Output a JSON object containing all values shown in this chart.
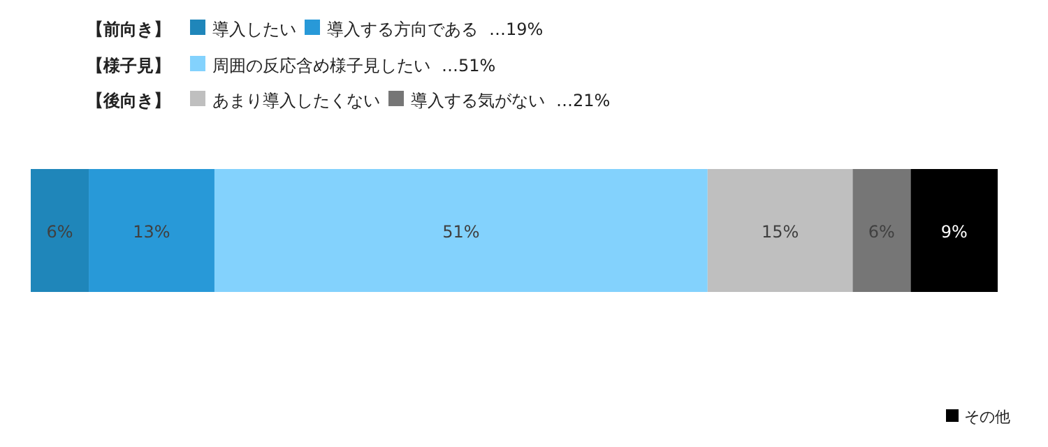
{
  "chart_data": {
    "type": "bar",
    "orientation": "horizontal",
    "stacked": true,
    "legend": "top",
    "categories": [
      null
    ],
    "annotations": [
      "【前向き】",
      "【様子見】",
      "【後向き】",
      "…19%",
      "…51%",
      "…21%"
    ],
    "series": [
      {
        "name": "導入したい",
        "color": "#1f86ba",
        "values": [
          6
        ],
        "value_labels": [
          "6%"
        ]
      },
      {
        "name": "導入する方向である",
        "color": "#2899d8",
        "values": [
          13
        ],
        "value_labels": [
          "13%"
        ]
      },
      {
        "name": "周囲の反応含め様子見したい",
        "color": "#83d2fd",
        "values": [
          51
        ],
        "value_labels": [
          "51%"
        ]
      },
      {
        "name": "あまり導入したくない",
        "color": "#bfbfbf",
        "values": [
          15
        ],
        "value_labels": [
          "15%"
        ]
      },
      {
        "name": "導入する気がない",
        "color": "#767676",
        "values": [
          6
        ],
        "value_labels": [
          "6%"
        ]
      },
      {
        "name": "その他",
        "color": "#000000",
        "values": [
          9
        ],
        "value_labels": [
          "9%"
        ]
      }
    ]
  }
}
